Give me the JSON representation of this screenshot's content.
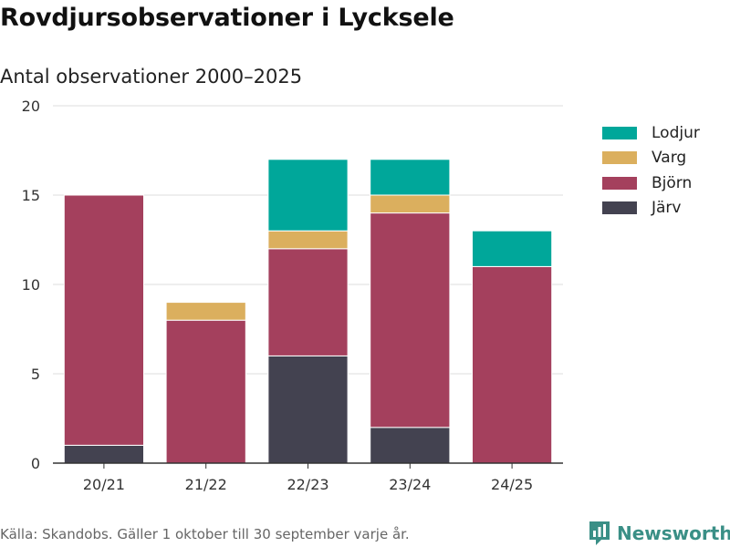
{
  "title": "Rovdjursobservationer i Lycksele",
  "subtitle": "Antal observationer 2000–2025",
  "source": "Källa: Skandobs. Gäller 1 oktober till 30 september varje år.",
  "brand": {
    "name": "Newsworthy",
    "logo_icon": "bar-chart-logo-icon",
    "color": "#3a8f86"
  },
  "chart_data": {
    "type": "bar",
    "stacked": true,
    "categories": [
      "20/21",
      "21/22",
      "22/23",
      "23/24",
      "24/25"
    ],
    "series": [
      {
        "name": "Järv",
        "color": "#434250",
        "values": [
          1,
          0,
          6,
          2,
          0
        ]
      },
      {
        "name": "Björn",
        "color": "#a4405d",
        "values": [
          14,
          8,
          6,
          12,
          11
        ]
      },
      {
        "name": "Varg",
        "color": "#dbaf5e",
        "values": [
          0,
          1,
          1,
          1,
          0
        ]
      },
      {
        "name": "Lodjur",
        "color": "#00a79a",
        "values": [
          0,
          0,
          4,
          2,
          2
        ]
      }
    ],
    "legend_order": [
      "Lodjur",
      "Varg",
      "Björn",
      "Järv"
    ],
    "ylim": [
      0,
      20
    ],
    "yticks": [
      0,
      5,
      10,
      15,
      20
    ],
    "grid": true,
    "legend_position": "right",
    "xlabel": "",
    "ylabel": ""
  }
}
